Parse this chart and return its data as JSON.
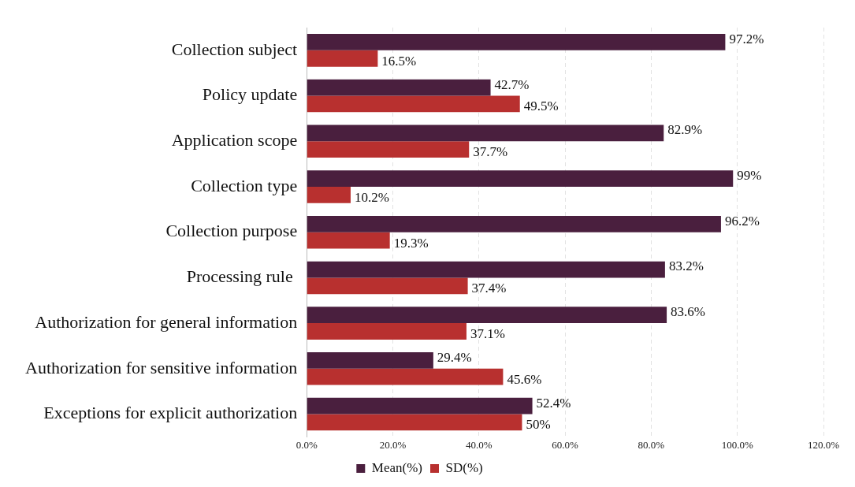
{
  "chart_data": {
    "type": "bar",
    "orientation": "horizontal",
    "categories": [
      "Collection subject",
      "Policy update",
      "Application scope",
      "Collection type",
      "Collection purpose",
      "Processing rule ",
      "Authorization for general information",
      "Authorization for sensitive information",
      "Exceptions for explicit authorization"
    ],
    "series": [
      {
        "name": "Mean(%)",
        "color": "#4a1f3e",
        "values": [
          97.2,
          42.7,
          82.9,
          99,
          96.2,
          83.2,
          83.6,
          29.4,
          52.4
        ],
        "value_labels": [
          "97.2%",
          "42.7%",
          "82.9%",
          "99%",
          "96.2%",
          "83.2%",
          "83.6%",
          "29.4%",
          "52.4%"
        ]
      },
      {
        "name": "SD(%)",
        "color": "#b8302f",
        "values": [
          16.5,
          49.5,
          37.7,
          10.2,
          19.3,
          37.4,
          37.1,
          45.6,
          50
        ],
        "value_labels": [
          "16.5%",
          "49.5%",
          "37.7%",
          "10.2%",
          "19.3%",
          "37.4%",
          "37.1%",
          "45.6%",
          "50%"
        ]
      }
    ],
    "xlim": [
      0,
      120
    ],
    "xticks": [
      {
        "value": 0,
        "label": "0.0%"
      },
      {
        "value": 20,
        "label": "20.0%"
      },
      {
        "value": 40,
        "label": "40.0%"
      },
      {
        "value": 60,
        "label": "60.0%"
      },
      {
        "value": 80,
        "label": "80.0%"
      },
      {
        "value": 100,
        "label": "100.0%"
      },
      {
        "value": 120,
        "label": "120.0%"
      }
    ],
    "grid": "x",
    "legend": "bottom"
  }
}
